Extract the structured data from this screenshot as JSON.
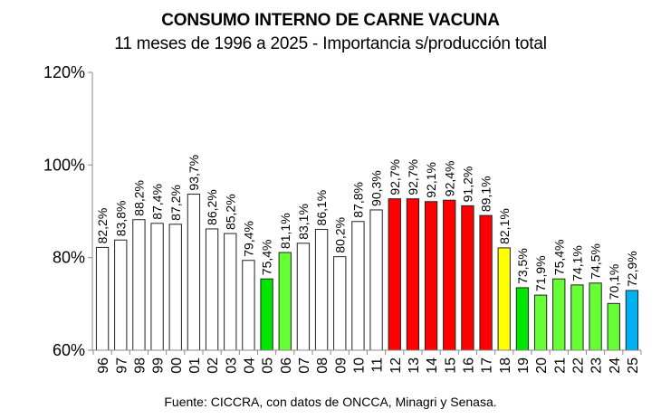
{
  "chart_data": {
    "type": "bar",
    "title": "CONSUMO INTERNO DE CARNE VACUNA",
    "subtitle": "11 meses de 1996 a 2025 - Importancia s/producción total",
    "xlabel": "",
    "ylabel": "",
    "ylim": [
      60,
      120
    ],
    "yticks": [
      "60%",
      "80%",
      "100%",
      "120%"
    ],
    "grid": false,
    "legend": null,
    "categories": [
      "96",
      "97",
      "98",
      "99",
      "00",
      "01",
      "02",
      "03",
      "04",
      "05",
      "06",
      "07",
      "08",
      "09",
      "10",
      "11",
      "12",
      "13",
      "14",
      "15",
      "16",
      "17",
      "18",
      "19",
      "20",
      "21",
      "22",
      "23",
      "24",
      "25"
    ],
    "values": [
      82.2,
      83.8,
      88.2,
      87.4,
      87.2,
      93.7,
      86.2,
      85.2,
      79.4,
      75.4,
      81.1,
      83.1,
      86.1,
      80.2,
      87.8,
      90.3,
      92.7,
      92.7,
      92.1,
      92.4,
      91.2,
      89.1,
      82.1,
      73.5,
      71.9,
      75.4,
      74.1,
      74.5,
      70.1,
      72.9
    ],
    "labels": [
      "82,2%",
      "83,8%",
      "88,2%",
      "87,4%",
      "87,2%",
      "93,7%",
      "86,2%",
      "85,2%",
      "79,4%",
      "75,4%",
      "81,1%",
      "83,1%",
      "86,1%",
      "80,2%",
      "87,8%",
      "90,3%",
      "92,7%",
      "92,7%",
      "92,1%",
      "92,4%",
      "91,2%",
      "89,1%",
      "82,1%",
      "73,5%",
      "71,9%",
      "75,4%",
      "74,1%",
      "74,5%",
      "70,1%",
      "72,9%"
    ],
    "colors": [
      "#ffffff",
      "#ffffff",
      "#ffffff",
      "#ffffff",
      "#ffffff",
      "#ffffff",
      "#ffffff",
      "#ffffff",
      "#ffffff",
      "#00e600",
      "#66ff33",
      "#ffffff",
      "#ffffff",
      "#ffffff",
      "#ffffff",
      "#ffffff",
      "#ff0000",
      "#ff0000",
      "#ff0000",
      "#ff0000",
      "#ff0000",
      "#ff0000",
      "#ffff00",
      "#00e600",
      "#66ff33",
      "#66ff33",
      "#66ff33",
      "#66ff33",
      "#66ff33",
      "#00b0f0"
    ],
    "annotations": []
  },
  "header": {
    "title": "CONSUMO INTERNO DE CARNE VACUNA",
    "subtitle": "11 meses de 1996 a 2025 - Importancia s/producción total"
  },
  "footer": {
    "source": "Fuente: CICCRA, con datos de ONCCA, Minagri y Senasa."
  }
}
